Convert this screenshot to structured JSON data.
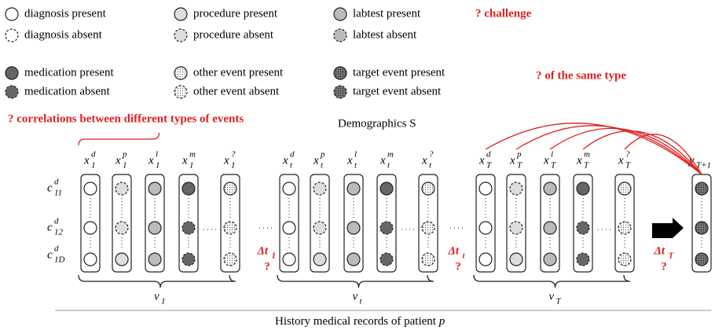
{
  "legend": {
    "rows": [
      [
        "diagnosis present",
        "procedure present",
        "labtest present"
      ],
      [
        "diagnosis absent",
        "procedure absent",
        "labtest absent"
      ],
      [
        "medication present",
        "other event present",
        "target event  present"
      ],
      [
        "medication absent",
        "other event absent",
        "target event absent"
      ]
    ],
    "challenge": "? challenge"
  },
  "annotations": {
    "correlations": "? correlations  between different types of events",
    "same_type": "? of the same type",
    "demographics": "Demographics S"
  },
  "row_labels": [
    {
      "base": "c",
      "sup": "d",
      "sub": "11"
    },
    {
      "base": "c",
      "sup": "d",
      "sub": "12"
    },
    {
      "base": "c",
      "sup": "d",
      "sub": "1D"
    }
  ],
  "groups": [
    {
      "columns": [
        {
          "base": "x",
          "sup": "d",
          "sub": "1"
        },
        {
          "base": "x",
          "sup": "p",
          "sub": "1"
        },
        {
          "base": "x",
          "sup": "l",
          "sub": "1"
        },
        {
          "base": "x",
          "sup": "m",
          "sub": "1"
        },
        {
          "base": "x",
          "sup": "?",
          "sub": "1"
        }
      ],
      "vector": {
        "base": "v",
        "sub": "1"
      },
      "delta": {
        "base": "Δt",
        "sub": "1",
        "q": "?"
      }
    },
    {
      "columns": [
        {
          "base": "x",
          "sup": "d",
          "sub": "t"
        },
        {
          "base": "x",
          "sup": "p",
          "sub": "t"
        },
        {
          "base": "x",
          "sup": "l",
          "sub": "t"
        },
        {
          "base": "x",
          "sup": "m",
          "sub": "t"
        },
        {
          "base": "x",
          "sup": "?",
          "sub": "t"
        }
      ],
      "vector": {
        "base": "v",
        "sub": "t"
      },
      "delta": {
        "base": "Δt",
        "sub": "t",
        "q": "?"
      }
    },
    {
      "columns": [
        {
          "base": "x",
          "sup": "d",
          "sub": "T"
        },
        {
          "base": "x",
          "sup": "p",
          "sub": "T"
        },
        {
          "base": "x",
          "sup": "l",
          "sub": "T"
        },
        {
          "base": "x",
          "sup": "m",
          "sub": "T"
        },
        {
          "base": "x",
          "sup": "?",
          "sub": "T"
        }
      ],
      "vector": {
        "base": "v",
        "sub": "T"
      },
      "delta": {
        "base": "Δt",
        "sub": "T",
        "q": "?"
      }
    }
  ],
  "target": {
    "base": "y",
    "sub": "T+1"
  },
  "footer": {
    "text": "History medical records of patient ",
    "var": "p"
  }
}
